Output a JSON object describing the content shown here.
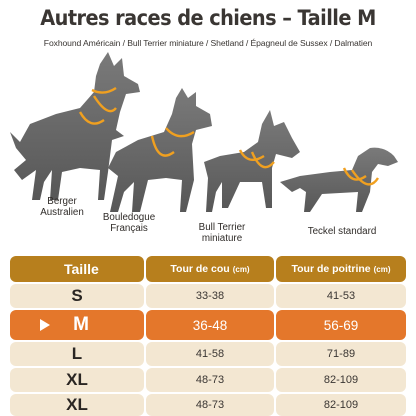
{
  "title": "Autres races de chiens – Taille M",
  "subtitle": "Foxhound Américain / Bull Terrier miniature / Shetland / Épagneul de Sussex / Dalmatien",
  "dogs": [
    {
      "label": "Berger\nAustralien"
    },
    {
      "label": "Bouledogue\nFrançais"
    },
    {
      "label": "Bull Terrier\nminiature"
    },
    {
      "label": "Teckel standard"
    }
  ],
  "colors": {
    "harness": "#f0a020",
    "header": "#b77f1d",
    "row": "#f3e7d2",
    "highlight": "#e4772b",
    "silhouette": "#6a6a6a"
  },
  "table": {
    "header": {
      "size": "Taille",
      "neck": "Tour de cou",
      "neck_unit": "(cm)",
      "chest": "Tour de poitrine",
      "chest_unit": "(cm)"
    },
    "rows": [
      {
        "size": "S",
        "neck": "33-38",
        "chest": "41-53",
        "highlight": false
      },
      {
        "size": "M",
        "neck": "36-48",
        "chest": "56-69",
        "highlight": true
      },
      {
        "size": "L",
        "neck": "41-58",
        "chest": "71-89",
        "highlight": false
      },
      {
        "size": "XL",
        "neck": "48-73",
        "chest": "82-109",
        "highlight": false
      },
      {
        "size": "XL",
        "neck": "48-73",
        "chest": "82-109",
        "highlight": false
      }
    ]
  }
}
